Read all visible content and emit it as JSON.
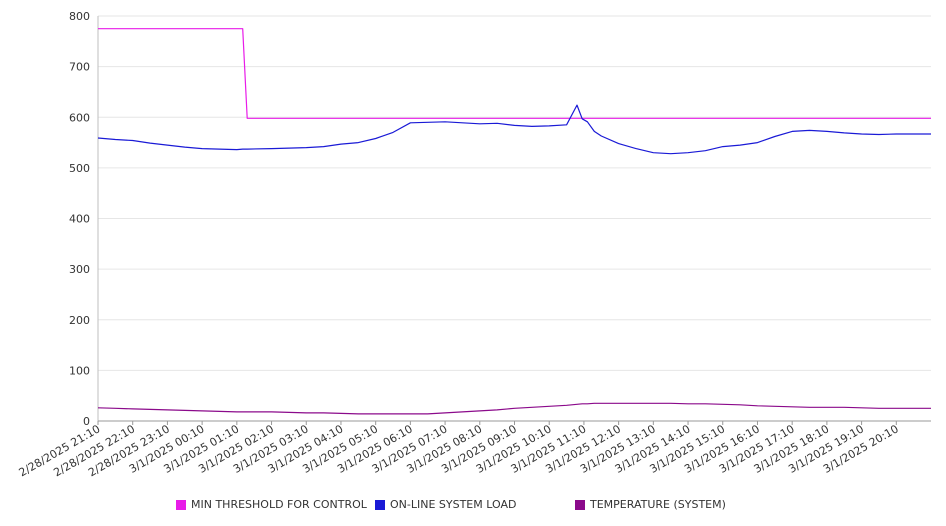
{
  "chart_data": {
    "type": "line",
    "title": "",
    "xlabel": "",
    "ylabel": "",
    "ylim": [
      0,
      800
    ],
    "yticks": [
      0,
      100,
      200,
      300,
      400,
      500,
      600,
      700,
      800
    ],
    "grid": true,
    "legend_position": "bottom",
    "x_tick_labels": [
      "2/28/2025 21:10",
      "2/28/2025 22:10",
      "2/28/2025 23:10",
      "3/1/2025 00:10",
      "3/1/2025 01:10",
      "3/1/2025 02:10",
      "3/1/2025 03:10",
      "3/1/2025 04:10",
      "3/1/2025 05:10",
      "3/1/2025 06:10",
      "3/1/2025 07:10",
      "3/1/2025 08:10",
      "3/1/2025 09:10",
      "3/1/2025 10:10",
      "3/1/2025 11:10",
      "3/1/2025 12:10",
      "3/1/2025 13:10",
      "3/1/2025 14:10",
      "3/1/2025 15:10",
      "3/1/2025 16:10",
      "3/1/2025 17:10",
      "3/1/2025 18:10",
      "3/1/2025 19:10",
      "3/1/2025 20:10"
    ],
    "x_hours": [
      0,
      0.5,
      1,
      1.5,
      2,
      2.5,
      3,
      3.5,
      4,
      4.17,
      4.3,
      5,
      5.5,
      6,
      6.5,
      7,
      7.5,
      8,
      8.5,
      9,
      9.5,
      10,
      10.5,
      11,
      11.5,
      12,
      12.5,
      13,
      13.5,
      13.8,
      13.95,
      14.1,
      14.3,
      14.5,
      15,
      15.5,
      16,
      16.5,
      17,
      17.5,
      18,
      18.5,
      19,
      19.5,
      20,
      20.5,
      21,
      21.5,
      22,
      22.5,
      23,
      23.5,
      24
    ],
    "series": [
      {
        "name": "MIN THRESHOLD FOR CONTROL",
        "color": "#e81ce8",
        "values": [
          775,
          775,
          775,
          775,
          775,
          775,
          775,
          775,
          775,
          775,
          598,
          598,
          598,
          598,
          598,
          598,
          598,
          598,
          598,
          598,
          598,
          598,
          598,
          598,
          598,
          598,
          598,
          598,
          598,
          598,
          598,
          598,
          598,
          598,
          598,
          598,
          598,
          598,
          598,
          598,
          598,
          598,
          598,
          598,
          598,
          598,
          598,
          598,
          598,
          598,
          598,
          598,
          598
        ]
      },
      {
        "name": "ON-LINE SYSTEM LOAD",
        "color": "#1a1ad6",
        "values": [
          559,
          556,
          554,
          549,
          545,
          541,
          538,
          537,
          536,
          537,
          537,
          538,
          539,
          540,
          542,
          547,
          550,
          558,
          570,
          589,
          590,
          591,
          589,
          587,
          588,
          584,
          582,
          583,
          585,
          624,
          597,
          591,
          572,
          563,
          548,
          538,
          530,
          528,
          530,
          534,
          542,
          545,
          550,
          562,
          572,
          574,
          572,
          569,
          567,
          566,
          567,
          567,
          567
        ]
      },
      {
        "name": "TEMPERATURE (SYSTEM)",
        "color": "#8b0a8b",
        "values": [
          26,
          25,
          24,
          23,
          22,
          21,
          20,
          19,
          18,
          18,
          18,
          18,
          17,
          16,
          16,
          15,
          14,
          14,
          14,
          14,
          14,
          16,
          18,
          20,
          22,
          25,
          27,
          29,
          31,
          33,
          34,
          34,
          35,
          35,
          35,
          35,
          35,
          35,
          34,
          34,
          33,
          32,
          30,
          29,
          28,
          27,
          27,
          27,
          26,
          25,
          25,
          25,
          25
        ]
      }
    ]
  }
}
